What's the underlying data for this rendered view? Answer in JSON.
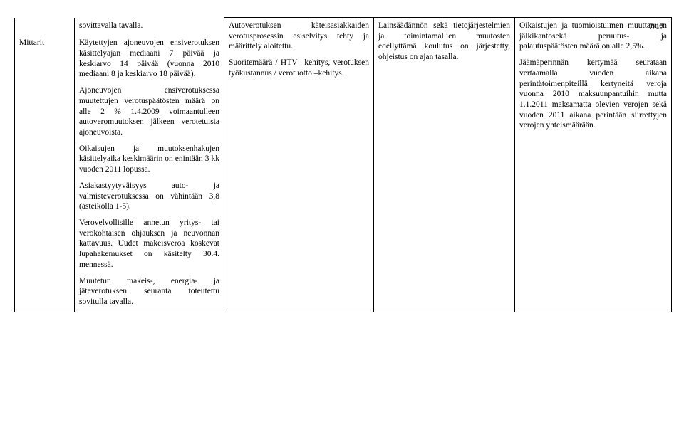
{
  "page_number": "7/17",
  "row_label": "Mittarit",
  "col1": {
    "p0": "sovittavalla tavalla.",
    "p1": "Käytettyjen ajoneuvojen ensiverotuksen käsittelyajan mediaani 7 päivää ja keskiarvo 14 päivää (vuonna 2010 mediaani 8 ja keskiarvo 18 päivää).",
    "p2": "Ajoneuvojen ensiverotuksessa muutettujen verotuspäätösten määrä on alle 2 % 1.4.2009 voimaantulleen autoveromuutoksen jälkeen verotetuista ajoneuvoista.",
    "p3": "Oikaisujen ja muutoksenhakujen käsittelyaika keskimäärin on enintään 3 kk vuoden 2011 lopussa.",
    "p4": "Asiakastyytyväisyys auto- ja valmisteverotuksessa on vähintään 3,8 (asteikolla 1-5).",
    "p5": "Verovelvollisille annetun yritys- tai verokohtaisen ohjauksen ja neuvonnan kattavuus. Uudet makeisveroa koskevat lupahakemukset on käsitelty 30.4. mennessä.",
    "p6": "Muutetun makeis-, energia- ja jäteverotuksen seuranta toteutettu sovitulla tavalla."
  },
  "col2": {
    "p1": "Autoverotuksen käteisasiakkaiden verotusprosessin esiselvitys tehty ja määrittely aloitettu.",
    "p2": "Suoritemäärä / HTV –kehitys, verotuksen työkustannus / verotuotto –kehitys."
  },
  "col3": {
    "p1": "Lainsäädännön sekä tietojärjestelmien ja toimintamallien muutosten edellyttämä koulutus on järjestetty, ohjeistus on ajan tasalla."
  },
  "col4": {
    "p1": "Oikaistujen ja tuomioistuimen muuttamien jälkikantosekä peruutus- ja palautuspäätösten määrä on alle 2,5%.",
    "p2": "Jäämäperinnän kertymää seurataan vertaamalla vuoden aikana perintätoimenpiteillä kertyneitä veroja vuonna 2010 maksuunpantuihin mutta 1.1.2011 maksamatta olevien verojen sekä vuoden 2011 aikana perintään siirrettyjen verojen yhteismäärään."
  }
}
